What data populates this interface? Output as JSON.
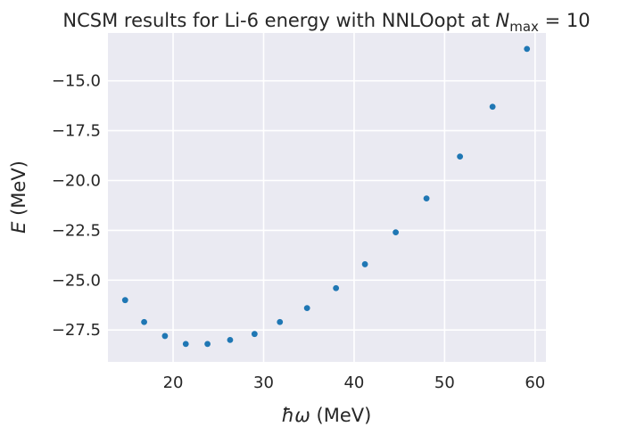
{
  "chart_data": {
    "type": "scatter",
    "title": "NCSM results for Li-6 energy with NNLOopt at ",
    "title_math": {
      "var": "N",
      "sub": "max",
      "rest": " = 10"
    },
    "xlabel": {
      "var": "ħω",
      "rest": " (MeV)"
    },
    "ylabel": {
      "var": "E",
      "rest": " (MeV)"
    },
    "xlim": [
      12.8,
      61.2
    ],
    "ylim": [
      -29.1,
      -12.6
    ],
    "x_ticks": [
      20,
      30,
      40,
      50,
      60
    ],
    "y_ticks": [
      -15.0,
      -17.5,
      -20.0,
      -22.5,
      -25.0,
      -27.5
    ],
    "x_tick_labels": [
      "20",
      "30",
      "40",
      "50",
      "60"
    ],
    "y_tick_labels": [
      "−15.0",
      "−17.5",
      "−20.0",
      "−22.5",
      "−25.0",
      "−27.5"
    ],
    "grid": true,
    "background": "#eaeaf2",
    "marker_color": "#1f77b4",
    "x": [
      14.7,
      16.8,
      19.1,
      21.4,
      23.8,
      26.3,
      29.0,
      31.8,
      34.8,
      38.0,
      41.2,
      44.6,
      48.0,
      51.7,
      55.3,
      59.1
    ],
    "y": [
      -26.0,
      -27.1,
      -27.8,
      -28.2,
      -28.2,
      -28.0,
      -27.7,
      -27.1,
      -26.4,
      -25.4,
      -24.2,
      -22.6,
      -20.9,
      -18.8,
      -16.3,
      -13.4
    ]
  }
}
